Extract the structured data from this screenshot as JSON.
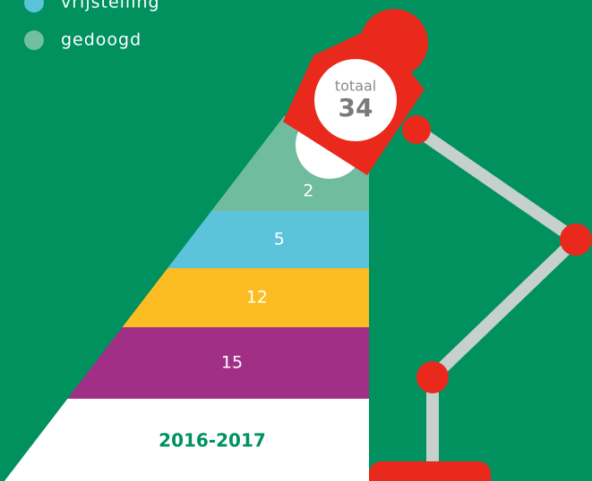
{
  "legend": [
    {
      "label": "vrijstelling",
      "color": "#5bc4db"
    },
    {
      "label": "gedoogd",
      "color": "#6fbfa0"
    }
  ],
  "total": {
    "label": "totaal",
    "value": "34"
  },
  "segments": [
    {
      "value": "2",
      "color": "#70bc9f"
    },
    {
      "value": "5",
      "color": "#5bc4db"
    },
    {
      "value": "12",
      "color": "#fbbd23"
    },
    {
      "value": "15",
      "color": "#a22f86"
    }
  ],
  "period": "2016-2017"
}
